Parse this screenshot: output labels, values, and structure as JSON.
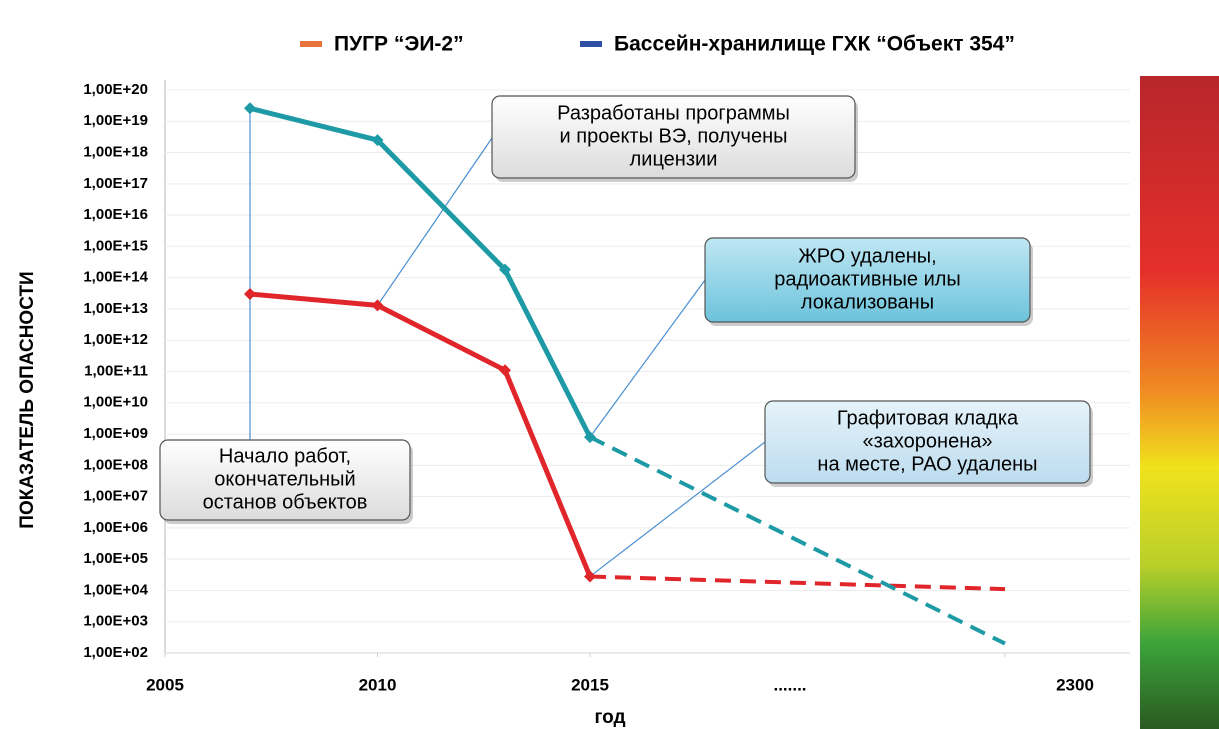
{
  "chart_data": {
    "type": "line",
    "legend": "top",
    "y_log": true,
    "grid": true,
    "ylabel": "ПОКАЗАТЕЛЬ ОПАСНОСТИ",
    "xlabel": "год",
    "xticks": [
      2005,
      2010,
      2015,
      2300
    ],
    "x_gap_label": ".......",
    "ylim": [
      100.0,
      1e+20
    ],
    "yticks": [
      {
        "value": 1e+20,
        "label": "1,00E+20"
      },
      {
        "value": 1e+19,
        "label": "1,00E+19"
      },
      {
        "value": 1e+18,
        "label": "1,00E+18"
      },
      {
        "value": 1e+17,
        "label": "1,00E+17"
      },
      {
        "value": 1e+16,
        "label": "1,00E+16"
      },
      {
        "value": 1000000000000000.0,
        "label": "1,00E+15"
      },
      {
        "value": 100000000000000.0,
        "label": "1,00E+14"
      },
      {
        "value": 10000000000000.0,
        "label": "1,00E+13"
      },
      {
        "value": 1000000000000.0,
        "label": "1,00E+12"
      },
      {
        "value": 100000000000.0,
        "label": "1,00E+11"
      },
      {
        "value": 10000000000.0,
        "label": "1,00E+10"
      },
      {
        "value": 1000000000.0,
        "label": "1,00E+09"
      },
      {
        "value": 100000000.0,
        "label": "1,00E+08"
      },
      {
        "value": 10000000.0,
        "label": "1,00E+07"
      },
      {
        "value": 1000000.0,
        "label": "1,00E+06"
      },
      {
        "value": 100000.0,
        "label": "1,00E+05"
      },
      {
        "value": 10000.0,
        "label": "1,00E+04"
      },
      {
        "value": 1000.0,
        "label": "1,00E+03"
      },
      {
        "value": 100.0,
        "label": "1,00E+02"
      }
    ],
    "series": [
      {
        "name": "ПУГР “ЭИ-2”",
        "color": "#e0262b",
        "legend_color": "#e8743b",
        "x": [
          2007,
          2010,
          2013,
          2015
        ],
        "values": [
          30000000000000.0,
          13000000000000.0,
          110000000000.0,
          28000.0
        ],
        "projection": {
          "x": 2300,
          "value": 11000.0
        }
      },
      {
        "name": "Бассейн-хранилище ГХК “Объект 354”",
        "color": "#1d9aa6",
        "legend_color": "#2e4fa3",
        "x": [
          2007,
          2010,
          2013,
          2015
        ],
        "values": [
          2.6e+19,
          2.5e+18,
          180000000000000.0,
          800000000.0
        ],
        "projection": {
          "x": 2300,
          "value": 200
        }
      }
    ],
    "annotations": [
      {
        "lines": [
          "Начало работ,",
          "окончательный",
          "останов объектов"
        ]
      },
      {
        "lines": [
          "Разработаны программы",
          "и  проекты ВЭ, получены",
          "лицензии"
        ]
      },
      {
        "lines": [
          "ЖРО удалены,",
          "радиоактивные илы",
          "локализованы"
        ]
      },
      {
        "lines": [
          "Графитовая кладка",
          "«захоронена»",
          "на месте, РАО удалены"
        ]
      }
    ]
  }
}
